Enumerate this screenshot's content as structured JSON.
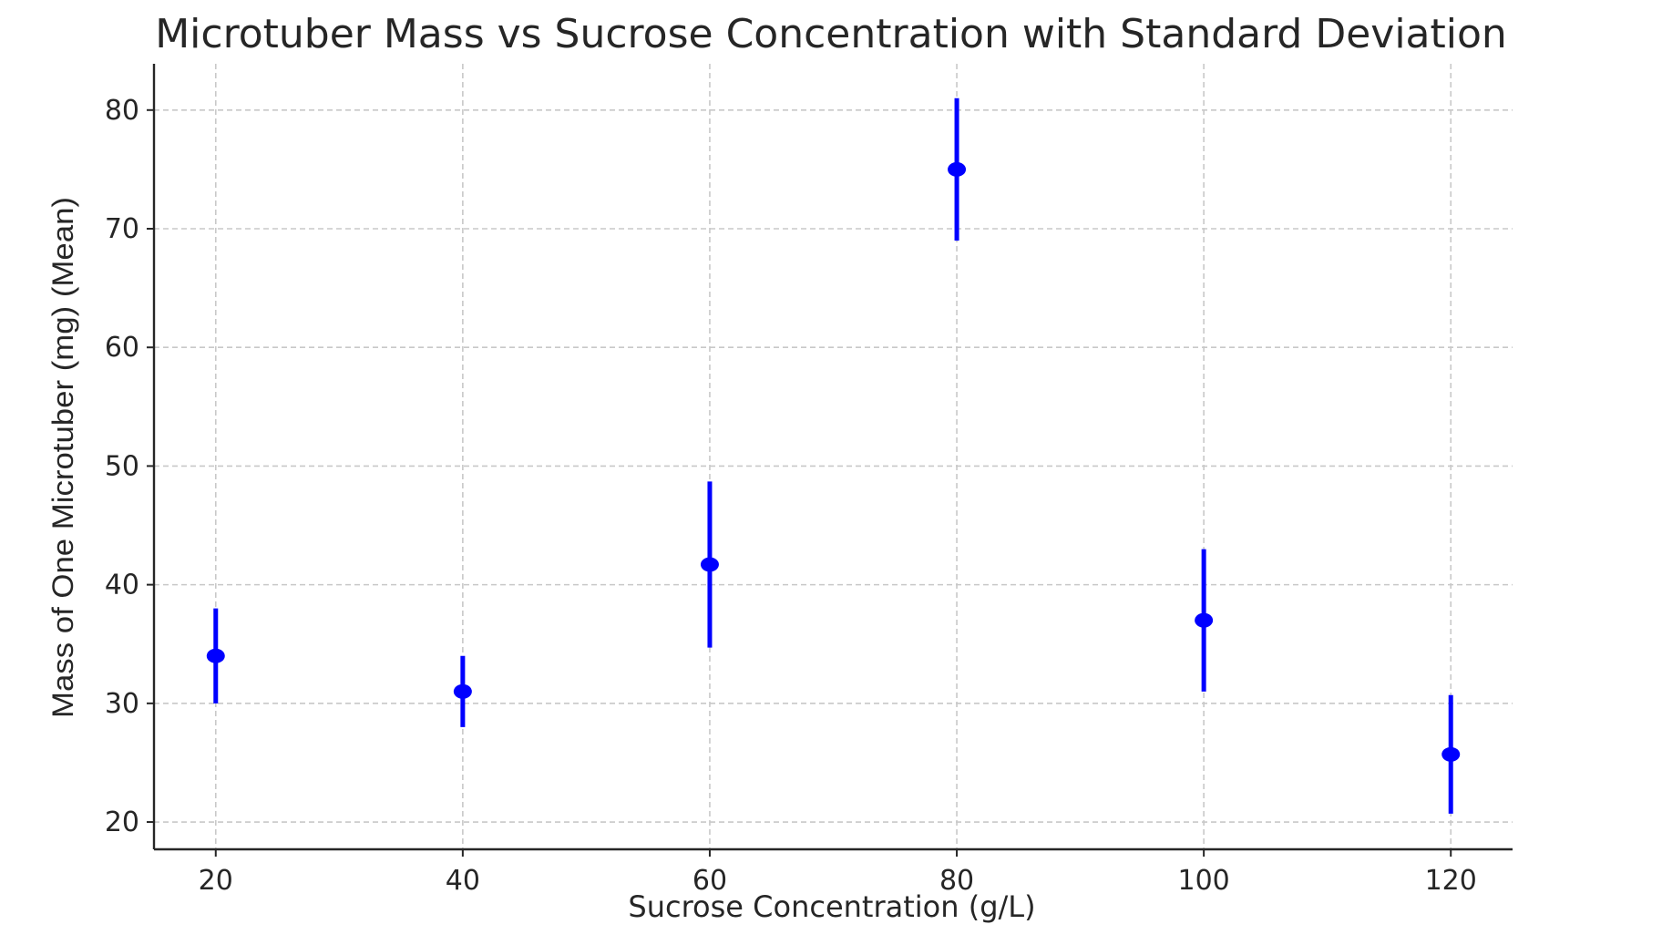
{
  "chart_data": {
    "type": "scatter",
    "title": "Microtuber Mass vs Sucrose Concentration with Standard Deviation",
    "xlabel": "Sucrose Concentration (g/L)",
    "ylabel": "Mass of One Microtuber (mg) (Mean)",
    "xlim": [
      15,
      125
    ],
    "ylim": [
      17.7,
      83.9
    ],
    "xticks": [
      20,
      40,
      60,
      80,
      100,
      120
    ],
    "yticks": [
      20,
      30,
      40,
      50,
      60,
      70,
      80
    ],
    "grid": true,
    "legend": "none",
    "series": [
      {
        "color": "#0000ff",
        "x": [
          20,
          40,
          60,
          80,
          100,
          120
        ],
        "y": [
          34,
          31,
          41.7,
          75,
          37,
          25.7
        ],
        "error": [
          4,
          3,
          7,
          6,
          6,
          5
        ]
      }
    ]
  }
}
